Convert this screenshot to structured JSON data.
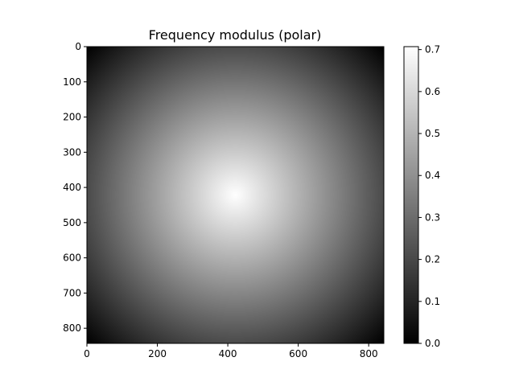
{
  "chart_data": {
    "type": "heatmap",
    "title": "Frequency modulus (polar)",
    "xlabel": "",
    "ylabel": "",
    "colormap": "gray",
    "image_width": 843,
    "image_height": 843,
    "center": [
      421,
      421
    ],
    "max_value": 0.707,
    "xlim": [
      0,
      843
    ],
    "ylim": [
      843,
      0
    ],
    "x_ticks": [
      0,
      200,
      400,
      600,
      800
    ],
    "y_ticks": [
      0,
      100,
      200,
      300,
      400,
      500,
      600,
      700,
      800
    ],
    "colorbar": {
      "range": [
        0.0,
        0.707
      ],
      "ticks": [
        0.0,
        0.1,
        0.2,
        0.3,
        0.4,
        0.5,
        0.6,
        0.7
      ],
      "tick_labels": [
        "0.0",
        "0.1",
        "0.2",
        "0.3",
        "0.4",
        "0.5",
        "0.6",
        "0.7"
      ]
    },
    "grid": false
  }
}
